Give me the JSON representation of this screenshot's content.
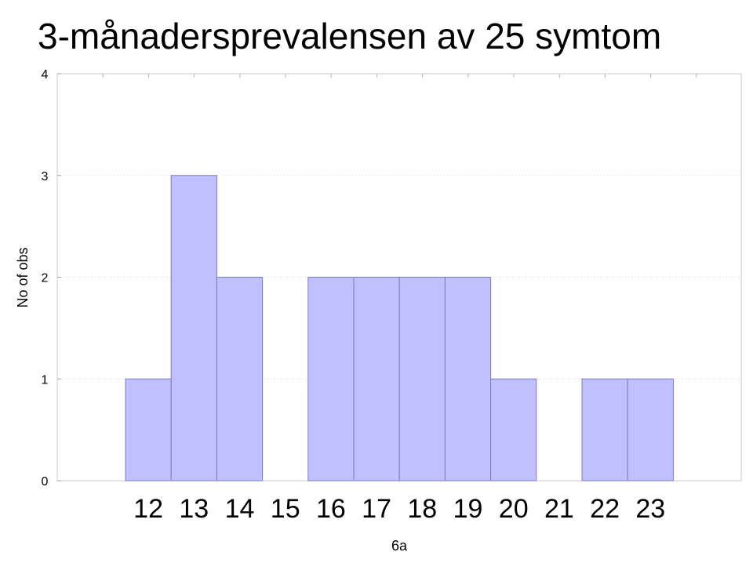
{
  "chart_data": {
    "type": "bar",
    "title": "3-månadersprevalensen av 25 symtom",
    "xlabel": "6a",
    "ylabel": "No of obs",
    "categories": [
      "12",
      "13",
      "14",
      "15",
      "16",
      "17",
      "18",
      "19",
      "20",
      "21",
      "22",
      "23"
    ],
    "values": [
      1,
      3,
      2,
      0,
      2,
      2,
      2,
      2,
      1,
      0,
      1,
      1
    ],
    "ylim": [
      0,
      4
    ],
    "yticks": [
      "0",
      "1",
      "2",
      "3",
      "4"
    ],
    "grid": true,
    "bar_color": "#C0C0FF",
    "bar_edge_color": "#7A7AC8"
  }
}
